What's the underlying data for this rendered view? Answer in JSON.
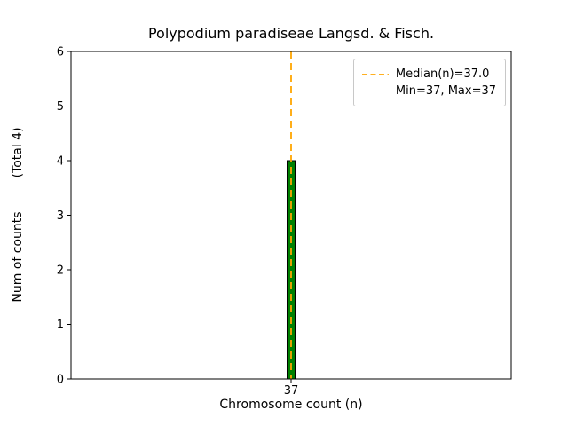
{
  "chart_data": {
    "type": "bar",
    "title": "Polypodium paradiseae Langsd. & Fisch.",
    "xlabel": "Chromosome count (n)",
    "ylabel": "Num of counts",
    "ylabel_secondary": "(Total 4)",
    "categories": [
      "37"
    ],
    "values": [
      4
    ],
    "ylim": [
      0,
      6
    ],
    "yticks": [
      0,
      1,
      2,
      3,
      4,
      5,
      6
    ],
    "xticks": [
      "37"
    ],
    "grid": false,
    "bar_color": "#008000",
    "bar_edge_color": "#000000",
    "median_line": {
      "value": 37.0,
      "color": "#FFA500",
      "style": "dashed"
    },
    "legend": {
      "position": "upper-right",
      "entries": [
        "Median(n)=37.0",
        "Min=37, Max=37"
      ]
    },
    "stats": {
      "median": 37.0,
      "min": 37,
      "max": 37,
      "total": 4
    }
  }
}
